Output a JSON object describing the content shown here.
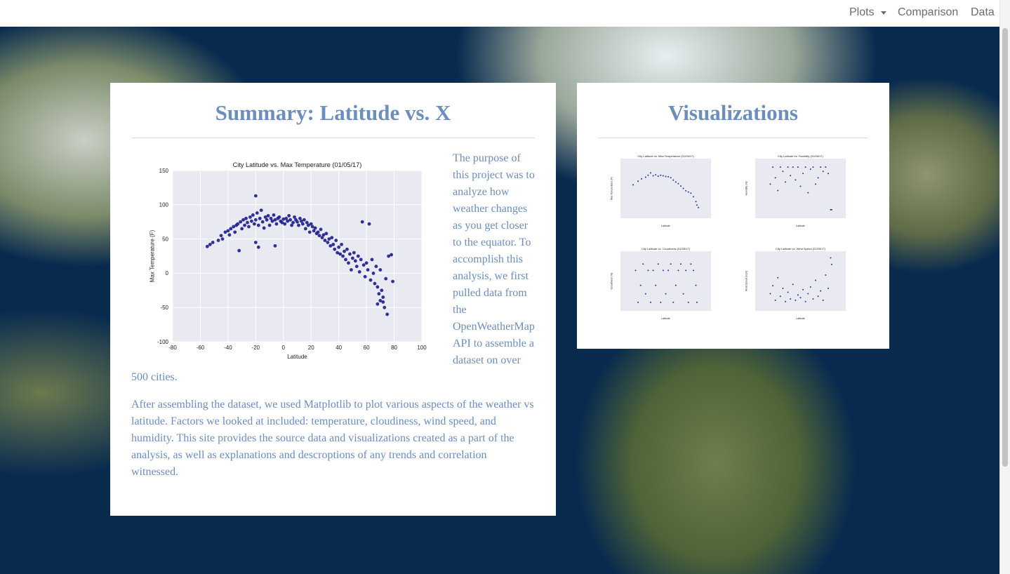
{
  "navbar": {
    "items": [
      "Plots",
      "Comparison",
      "Data"
    ]
  },
  "summary": {
    "title": "Summary: Latitude vs. X",
    "chart": {
      "type": "scatter",
      "title": "City Latitude vs. Max Temperature (01/05/17)",
      "x_label": "Latitude",
      "y_label": "Max Temperature (F)",
      "xlim": [
        -80,
        100
      ],
      "ylim": [
        -100,
        150
      ],
      "xticks": [
        -80,
        -60,
        -40,
        -20,
        0,
        20,
        40,
        60,
        80,
        100
      ],
      "yticks": [
        -100,
        -50,
        0,
        50,
        100,
        150
      ],
      "color": "#1c1c8c",
      "background": "#e8e9f1",
      "grid": true,
      "x": [
        -55,
        -53,
        -51,
        -47,
        -45,
        -44,
        -42,
        -40,
        -39,
        -38,
        -36,
        -35,
        -34,
        -33,
        -32,
        -31,
        -30,
        -29,
        -28,
        -27,
        -26,
        -25,
        -24,
        -23,
        -22,
        -21,
        -20,
        -20,
        -19,
        -18,
        -17,
        -16,
        -15,
        -14,
        -13,
        -12,
        -11,
        -10,
        -9,
        -8,
        -7,
        -6,
        -5,
        -4,
        -3,
        -2,
        -1,
        0,
        1,
        2,
        3,
        4,
        5,
        6,
        7,
        8,
        9,
        10,
        11,
        12,
        13,
        14,
        15,
        16,
        17,
        18,
        19,
        20,
        21,
        22,
        23,
        24,
        25,
        26,
        27,
        28,
        29,
        30,
        31,
        32,
        33,
        34,
        35,
        36,
        37,
        38,
        39,
        40,
        41,
        42,
        43,
        44,
        45,
        46,
        47,
        48,
        49,
        50,
        51,
        52,
        53,
        54,
        55,
        56,
        57,
        58,
        59,
        60,
        61,
        62,
        63,
        64,
        65,
        66,
        67,
        68,
        69,
        70,
        71,
        72,
        73,
        74,
        75,
        76,
        78,
        72,
        70,
        68,
        79,
        -18,
        -20,
        -6
      ],
      "y": [
        39,
        42,
        45,
        48,
        55,
        50,
        60,
        62,
        56,
        65,
        68,
        60,
        70,
        72,
        33,
        75,
        65,
        78,
        70,
        80,
        74,
        68,
        82,
        76,
        85,
        72,
        113,
        78,
        88,
        70,
        80,
        92,
        75,
        66,
        82,
        78,
        84,
        70,
        80,
        76,
        85,
        78,
        72,
        80,
        82,
        76,
        74,
        79,
        72,
        80,
        76,
        84,
        78,
        70,
        74,
        82,
        78,
        75,
        70,
        80,
        76,
        72,
        78,
        65,
        74,
        70,
        60,
        72,
        68,
        62,
        66,
        58,
        60,
        55,
        64,
        52,
        56,
        48,
        58,
        45,
        50,
        40,
        52,
        42,
        35,
        48,
        30,
        38,
        28,
        42,
        25,
        32,
        20,
        35,
        15,
        28,
        5,
        22,
        30,
        18,
        10,
        25,
        2,
        20,
        75,
        12,
        -5,
        15,
        5,
        72,
        -10,
        20,
        0,
        -15,
        10,
        -20,
        -30,
        5,
        -25,
        -42,
        -50,
        -8,
        -60,
        25,
        27,
        -35,
        -40,
        -45,
        -12,
        38,
        45,
        40
      ]
    }
  },
  "paragraphs": [
    "The purpose of this project was to analyze how weather changes as you get closer to the equator. To accomplish this analysis, we first pulled data from the OpenWeatherMap API to assemble a dataset on over 500 cities.",
    "After assembling the dataset, we used Matplotlib to plot various aspects of the weather vs latitude. Factors we looked at included: temperature, cloudiness, wind speed, and humidity. This site provides the source data and visualizations created as a part of the analysis, as well as explanations and descroptions of any trends and correlation witnessed."
  ],
  "visualizations": {
    "title": "Visualizations",
    "thumbnails": [
      {
        "type": "scatter",
        "title": "City Latitude vs. Max Temperature (01/05/17)",
        "x_label": "Latitude",
        "y_label": "Max Temperature (F)",
        "xlim": [
          -80,
          100
        ],
        "ylim": [
          -100,
          150
        ],
        "color": "#1c1c8c",
        "x": [
          -55,
          -45,
          -38,
          -30,
          -25,
          -20,
          -15,
          -10,
          -5,
          0,
          5,
          10,
          15,
          20,
          25,
          30,
          35,
          40,
          45,
          50,
          55,
          60,
          65,
          70,
          72,
          75
        ],
        "y": [
          40,
          55,
          65,
          72,
          80,
          90,
          78,
          82,
          76,
          80,
          78,
          75,
          74,
          70,
          60,
          52,
          45,
          35,
          25,
          15,
          10,
          5,
          -10,
          -30,
          -45,
          -55
        ]
      },
      {
        "type": "scatter",
        "title": "City Latitude vs. Humidity (01/05/17)",
        "x_label": "Latitude",
        "y_label": "Humidity (%)",
        "xlim": [
          -80,
          100
        ],
        "ylim": [
          -20,
          120
        ],
        "color": "#1c1c8c",
        "x": [
          -50,
          -45,
          -40,
          -35,
          -30,
          -25,
          -20,
          -15,
          -10,
          -5,
          0,
          5,
          10,
          15,
          20,
          25,
          30,
          35,
          40,
          45,
          50,
          55,
          60,
          65,
          70,
          72
        ],
        "y": [
          60,
          100,
          75,
          45,
          100,
          90,
          65,
          100,
          80,
          100,
          70,
          100,
          55,
          85,
          100,
          40,
          95,
          100,
          60,
          75,
          100,
          90,
          100,
          85,
          0,
          0
        ]
      },
      {
        "type": "scatter",
        "title": "City Latitude vs. Cloudiness (01/05/17)",
        "x_label": "Latitude",
        "y_label": "Cloudiness (%)",
        "xlim": [
          -80,
          100
        ],
        "ylim": [
          -20,
          120
        ],
        "color": "#1c1c8c",
        "x": [
          -50,
          -45,
          -40,
          -35,
          -30,
          -25,
          -20,
          -15,
          -10,
          -5,
          0,
          5,
          10,
          15,
          20,
          25,
          30,
          35,
          40,
          45,
          50,
          55,
          60,
          65,
          70,
          72
        ],
        "y": [
          75,
          0,
          40,
          90,
          20,
          75,
          0,
          75,
          40,
          90,
          0,
          75,
          20,
          75,
          90,
          0,
          40,
          75,
          90,
          20,
          75,
          0,
          90,
          75,
          40,
          0
        ]
      },
      {
        "type": "scatter",
        "title": "City Latitude vs. Wind Speed (01/05/17)",
        "x_label": "Latitude",
        "y_label": "Wind Speed (mph)",
        "xlim": [
          -80,
          100
        ],
        "ylim": [
          -5,
          40
        ],
        "color": "#1c1c8c",
        "x": [
          -50,
          -45,
          -40,
          -35,
          -30,
          -25,
          -20,
          -15,
          -10,
          -5,
          0,
          5,
          10,
          15,
          20,
          25,
          30,
          35,
          40,
          45,
          50,
          55,
          60,
          65,
          70,
          72
        ],
        "y": [
          8,
          14,
          3,
          20,
          6,
          12,
          2,
          9,
          4,
          15,
          3,
          7,
          5,
          11,
          2,
          8,
          13,
          4,
          18,
          6,
          10,
          3,
          22,
          12,
          35,
          30
        ]
      }
    ]
  }
}
